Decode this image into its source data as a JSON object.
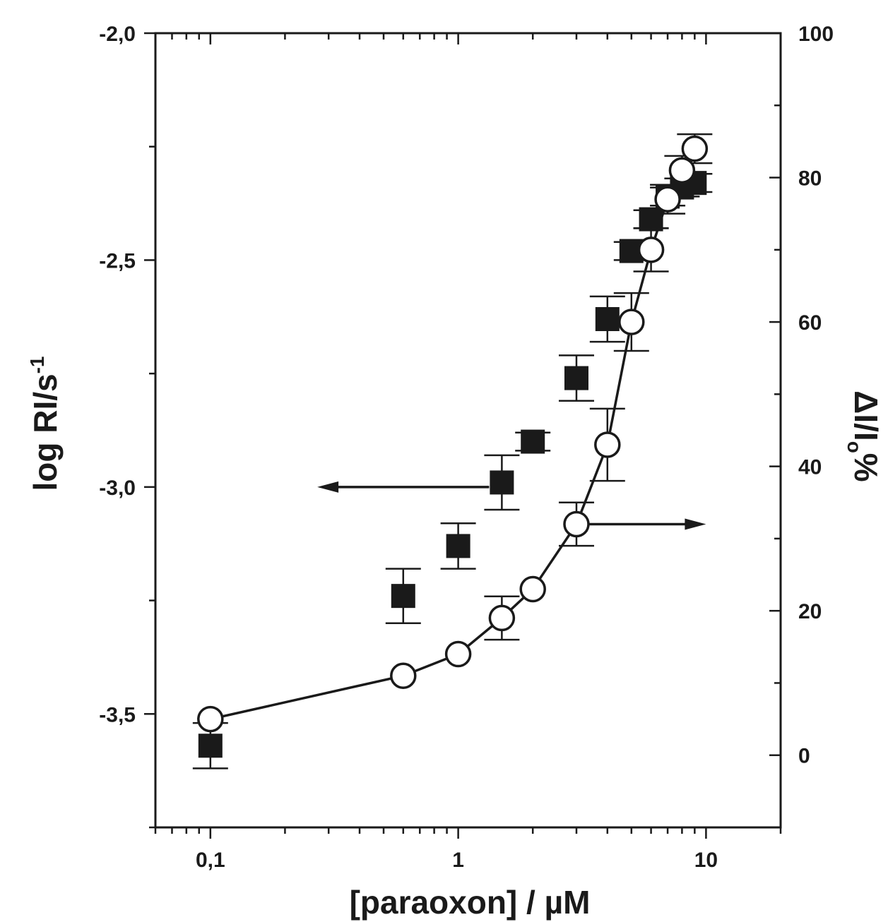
{
  "chart_data": {
    "type": "scatter",
    "title": "",
    "xlabel": "[paraoxon] / µM",
    "ylabel_left": {
      "main": "log RI/s",
      "sup": "-1"
    },
    "ylabel_right": {
      "main": "ΔI/I",
      "sub": "o",
      "tail": "%"
    },
    "xscale": "log",
    "xlim": [
      0.06,
      20
    ],
    "ylim_left": [
      -3.75,
      -2.0
    ],
    "ylim_right": [
      -10,
      100
    ],
    "x_ticks": [
      {
        "value": 0.1,
        "label": "0,1"
      },
      {
        "value": 1,
        "label": "1"
      },
      {
        "value": 10,
        "label": "10"
      }
    ],
    "y_left_ticks": [
      {
        "value": -2.0,
        "label": "-2,0"
      },
      {
        "value": -2.5,
        "label": "-2,5"
      },
      {
        "value": -3.0,
        "label": "-3,0"
      },
      {
        "value": -3.5,
        "label": "-3,5"
      }
    ],
    "y_right_ticks": [
      {
        "value": 0,
        "label": "0"
      },
      {
        "value": 20,
        "label": "20"
      },
      {
        "value": 40,
        "label": "40"
      },
      {
        "value": 60,
        "label": "60"
      },
      {
        "value": 80,
        "label": "80"
      },
      {
        "value": 100,
        "label": "100"
      }
    ],
    "series": [
      {
        "axis": "left",
        "marker": "filled-square",
        "line": false,
        "color": "#1a1a1a",
        "points": [
          {
            "x": 0.1,
            "y": -3.57,
            "err": 0.05
          },
          {
            "x": 0.6,
            "y": -3.24,
            "err": 0.06
          },
          {
            "x": 1.0,
            "y": -3.13,
            "err": 0.05
          },
          {
            "x": 1.5,
            "y": -2.99,
            "err": 0.06
          },
          {
            "x": 2.0,
            "y": -2.9,
            "err": 0.02
          },
          {
            "x": 3.0,
            "y": -2.76,
            "err": 0.05
          },
          {
            "x": 4.0,
            "y": -2.63,
            "err": 0.05
          },
          {
            "x": 5.0,
            "y": -2.48,
            "err": 0.02
          },
          {
            "x": 6.0,
            "y": -2.41,
            "err": 0.02
          },
          {
            "x": 7.0,
            "y": -2.36,
            "err": 0.02
          },
          {
            "x": 8.0,
            "y": -2.34,
            "err": 0.02
          },
          {
            "x": 9.0,
            "y": -2.33,
            "err": 0.02
          }
        ]
      },
      {
        "axis": "right",
        "marker": "open-circle",
        "line": true,
        "color": "#1a1a1a",
        "points": [
          {
            "x": 0.1,
            "y": 5,
            "err": 0
          },
          {
            "x": 0.6,
            "y": 11,
            "err": 0
          },
          {
            "x": 1.0,
            "y": 14,
            "err": 0
          },
          {
            "x": 1.5,
            "y": 19,
            "err": 3
          },
          {
            "x": 2.0,
            "y": 23,
            "err": 0
          },
          {
            "x": 3.0,
            "y": 32,
            "err": 3
          },
          {
            "x": 4.0,
            "y": 43,
            "err": 5
          },
          {
            "x": 5.0,
            "y": 60,
            "err": 4
          },
          {
            "x": 6.0,
            "y": 70,
            "err": 3
          },
          {
            "x": 7.0,
            "y": 77,
            "err": 2
          },
          {
            "x": 8.0,
            "y": 81,
            "err": 2
          },
          {
            "x": 9.0,
            "y": 84,
            "err": 2
          }
        ]
      }
    ],
    "annotations": [
      {
        "type": "arrow",
        "direction": "left",
        "points_to": "left-axis",
        "from": {
          "x": 1.5,
          "y": -3.0
        },
        "to": {
          "x": 0.27,
          "y": -3.0
        }
      },
      {
        "type": "arrow",
        "direction": "right",
        "points_to": "right-axis",
        "from": {
          "x": 3.0,
          "y": 32
        },
        "to": {
          "x": 10,
          "y": 32
        }
      }
    ]
  }
}
